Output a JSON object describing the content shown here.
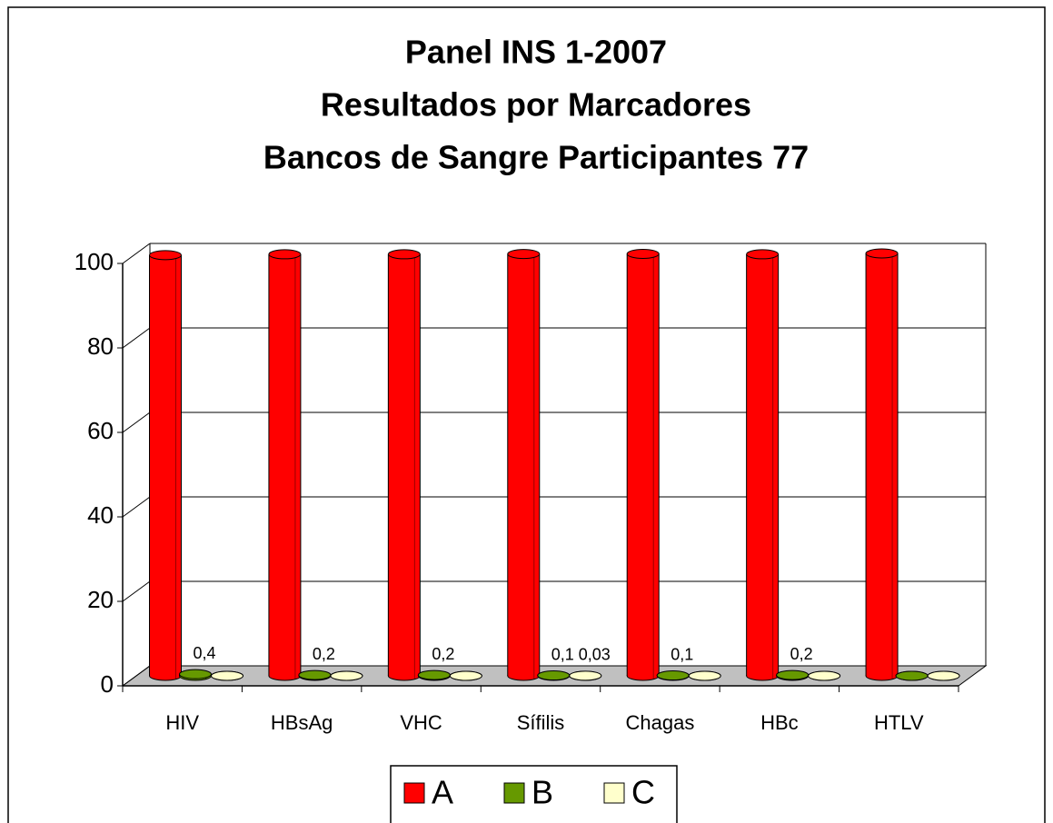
{
  "chart_data": {
    "type": "bar3d",
    "title": [
      "Panel INS 1-2007",
      "Resultados por Marcadores",
      "Bancos de Sangre Participantes 77"
    ],
    "categories": [
      "HIV",
      "HBsAg",
      "VHC",
      "Sífilis",
      "Chagas",
      "HBc",
      "HTLV"
    ],
    "series": [
      {
        "name": "A",
        "color": "#ff0000",
        "values": [
          99.6,
          99.8,
          99.8,
          99.87,
          99.9,
          99.8,
          100
        ]
      },
      {
        "name": "B",
        "color": "#669900",
        "values": [
          0.4,
          0.2,
          0.2,
          0.1,
          0.1,
          0.2,
          0
        ],
        "value_labels": [
          "0,4",
          "0,2",
          "0,2",
          "0,1",
          "0,1",
          "0,2",
          null
        ]
      },
      {
        "name": "C",
        "color": "#ffffcc",
        "values": [
          0,
          0,
          0,
          0.03,
          0,
          0,
          0
        ],
        "value_labels": [
          null,
          null,
          null,
          "0,03",
          null,
          null,
          null
        ]
      }
    ],
    "ylim": [
      0,
      100
    ],
    "yticks": [
      0,
      20,
      40,
      60,
      80,
      100
    ],
    "grid": true,
    "legend": "bottom"
  }
}
